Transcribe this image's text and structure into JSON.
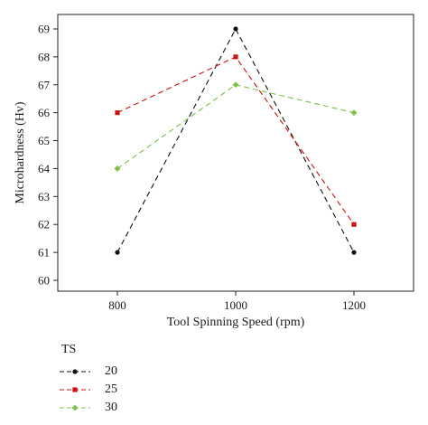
{
  "chart_data": {
    "type": "line",
    "categories": [
      "800",
      "1000",
      "1200"
    ],
    "xlabel": "Tool Spinning Speed (rpm)",
    "ylabel": "Microhardness (Hv)",
    "ylim": [
      60,
      69
    ],
    "yticks": [
      "60",
      "61",
      "62",
      "63",
      "64",
      "65",
      "66",
      "67",
      "68",
      "69"
    ],
    "grid": false,
    "legend_title": "TS",
    "legend_position": "bottom-left",
    "series": [
      {
        "name": "20",
        "values": [
          61,
          69,
          61
        ],
        "color": "#111111",
        "marker": "circle"
      },
      {
        "name": "25",
        "values": [
          66,
          68,
          62
        ],
        "color": "#cc1111",
        "marker": "square"
      },
      {
        "name": "30",
        "values": [
          64,
          67,
          66
        ],
        "color": "#7fbf4a",
        "marker": "diamond"
      }
    ]
  }
}
